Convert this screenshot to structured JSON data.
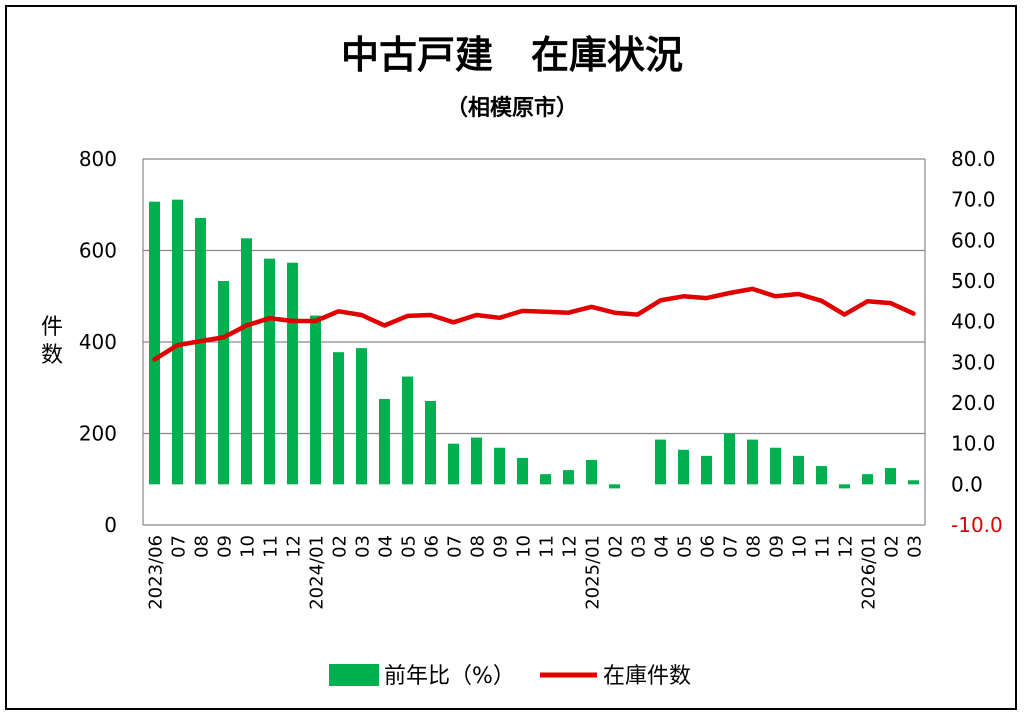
{
  "chart_data": {
    "type": "bar",
    "title": "中古戸建　在庫状況",
    "subtitle": "（相模原市）",
    "ylabel": "件数",
    "ylim": [
      0,
      800
    ],
    "y_ticks": [
      "0",
      "200",
      "400",
      "600",
      "800"
    ],
    "y2lim": [
      -10,
      80
    ],
    "y2_ticks": [
      "-10.0",
      "0.0",
      "10.0",
      "20.0",
      "30.0",
      "40.0",
      "50.0",
      "60.0",
      "70.0",
      "80.0"
    ],
    "categories": [
      "2023/06",
      "07",
      "08",
      "09",
      "10",
      "11",
      "12",
      "2024/01",
      "02",
      "03",
      "04",
      "05",
      "06",
      "07",
      "08",
      "09",
      "10",
      "11",
      "12",
      "2025/01",
      "02",
      "03",
      "04",
      "05",
      "06",
      "07",
      "08",
      "09",
      "10",
      "11",
      "12",
      "2026/01",
      "02",
      "03"
    ],
    "series": [
      {
        "name": "前年比（%）",
        "type": "bar",
        "axis": "right",
        "color": "#00b050",
        "values": [
          69.5,
          70.0,
          65.5,
          50.0,
          60.5,
          55.5,
          54.5,
          41.5,
          32.5,
          33.5,
          21.0,
          26.5,
          20.5,
          10.0,
          11.5,
          9.0,
          6.5,
          2.5,
          3.5,
          6.0,
          -1.0,
          0,
          11.0,
          8.5,
          7.0,
          12.5,
          11.0,
          9.0,
          7.0,
          4.5,
          -1.0,
          2.5,
          4.0,
          1.0
        ]
      },
      {
        "name": "在庫件数",
        "type": "line",
        "axis": "left",
        "color": "#e00000",
        "values": [
          362,
          393,
          402,
          410,
          436,
          452,
          446,
          446,
          467,
          459,
          436,
          457,
          459,
          443,
          459,
          453,
          468,
          466,
          464,
          477,
          464,
          460,
          491,
          500,
          496,
          507,
          516,
          500,
          505,
          490,
          460,
          489,
          485,
          462
        ]
      }
    ]
  }
}
